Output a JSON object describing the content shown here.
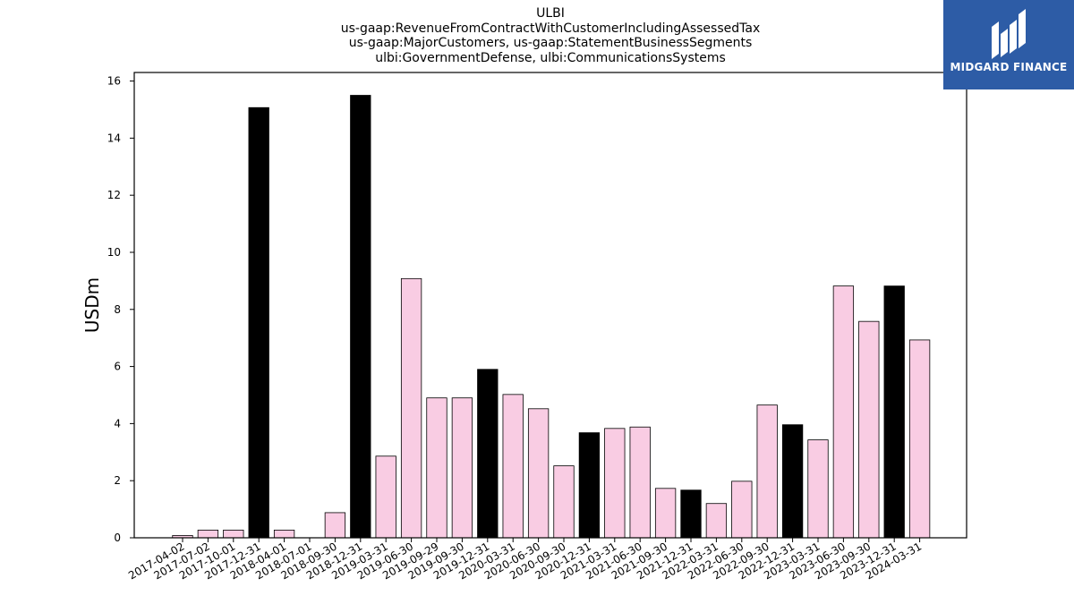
{
  "title_lines": [
    "ULBI",
    "us-gaap:RevenueFromContractWithCustomerIncludingAssessedTax",
    "us-gaap:MajorCustomers, us-gaap:StatementBusinessSegments",
    "ulbi:GovernmentDefense, ulbi:CommunicationsSystems"
  ],
  "logo": {
    "text": "MIDGARD FINANCE",
    "background": "#2d5ca6"
  },
  "colors": {
    "pink": "#f9cce3",
    "black": "#000000",
    "edge": "#000000"
  },
  "chart_data": {
    "type": "bar",
    "title": "ULBI",
    "ylabel": "USDm",
    "xlabel": "",
    "ylim": [
      0,
      16.3
    ],
    "yticks": [
      0,
      2,
      4,
      6,
      8,
      10,
      12,
      14,
      16
    ],
    "grid": false,
    "categories": [
      "2017-04-02",
      "2017-07-02",
      "2017-10-01",
      "2017-12-31",
      "2018-04-01",
      "2018-07-01",
      "2018-09-30",
      "2018-12-31",
      "2019-03-31",
      "2019-06-30",
      "2019-09-29",
      "2019-09-30",
      "2019-12-31",
      "2020-03-31",
      "2020-06-30",
      "2020-09-30",
      "2020-12-31",
      "2021-03-31",
      "2021-06-30",
      "2021-09-30",
      "2021-12-31",
      "2022-03-31",
      "2022-06-30",
      "2022-09-30",
      "2022-12-31",
      "2023-03-31",
      "2023-06-30",
      "2023-09-30",
      "2023-12-31",
      "2024-03-31"
    ],
    "values": [
      0.08,
      0.27,
      0.27,
      15.07,
      0.27,
      0.0,
      0.88,
      15.5,
      2.86,
      9.08,
      4.9,
      4.9,
      5.9,
      5.02,
      4.52,
      2.52,
      3.68,
      3.83,
      3.88,
      1.73,
      1.67,
      1.2,
      1.98,
      4.65,
      3.96,
      3.43,
      8.82,
      7.58,
      8.82,
      6.93
    ],
    "bar_colors": [
      "pink",
      "pink",
      "pink",
      "black",
      "pink",
      "pink",
      "pink",
      "black",
      "pink",
      "pink",
      "pink",
      "pink",
      "black",
      "pink",
      "pink",
      "pink",
      "black",
      "pink",
      "pink",
      "pink",
      "black",
      "pink",
      "pink",
      "pink",
      "black",
      "pink",
      "pink",
      "pink",
      "black",
      "pink"
    ]
  }
}
